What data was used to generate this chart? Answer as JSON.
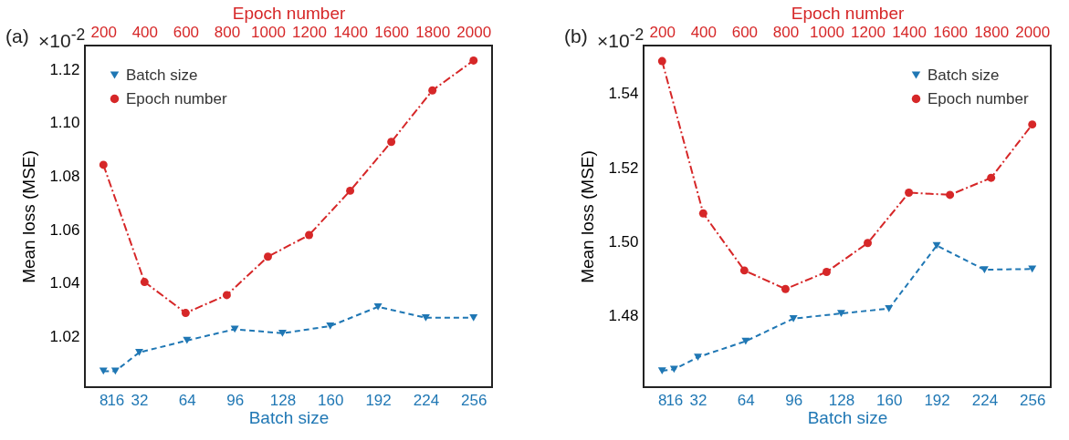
{
  "chart_data": [
    {
      "type": "line",
      "xlabel": "Batch size",
      "x2label": "Epoch number",
      "ylabel": "Mean loss (MSE)",
      "xlim": [
        -4.4,
        268.4
      ],
      "xticks": [
        8,
        16,
        32,
        64,
        96,
        128,
        160,
        192,
        224,
        256
      ],
      "x2lim": [
        110,
        2090
      ],
      "x2ticks": [
        200,
        400,
        600,
        800,
        1000,
        1200,
        1400,
        1600,
        1800,
        2000
      ],
      "ylim": [
        1.001,
        1.129
      ],
      "yticks": [
        1.02,
        1.04,
        1.06,
        1.08,
        {
          "value": 1.1,
          "label": "1.10"
        },
        1.12
      ],
      "legend": "top left",
      "annotations": [
        "(a)",
        "×10$^{-2}$"
      ],
      "series": [
        {
          "name": "Batch size",
          "color": "#1f77b4",
          "marker": "triangle-down",
          "line_style": "dashed",
          "x": [
            8,
            16,
            32,
            64,
            96,
            128,
            160,
            192,
            224,
            256
          ],
          "values": [
            1.007,
            1.007,
            1.014,
            1.0185,
            1.0227,
            1.0212,
            1.0239,
            1.0311,
            1.027,
            1.027
          ]
        },
        {
          "name": "Epoch number",
          "color": "#d62728",
          "marker": "circle",
          "line_style": "dashdot",
          "axis": "x2",
          "x": [
            200,
            400,
            600,
            800,
            1000,
            1200,
            1400,
            1600,
            1800,
            2000
          ],
          "values": [
            1.0843,
            1.0404,
            1.0288,
            1.0355,
            1.0499,
            1.058,
            1.0746,
            1.0929,
            1.1122,
            1.1234
          ]
        }
      ]
    },
    {
      "type": "line",
      "xlabel": "Batch size",
      "x2label": "Epoch number",
      "ylabel": "Mean loss (MSE)",
      "xlim": [
        -4.4,
        268.4
      ],
      "xticks": [
        8,
        16,
        32,
        64,
        96,
        128,
        160,
        192,
        224,
        256
      ],
      "x2lim": [
        110,
        2090
      ],
      "x2ticks": [
        200,
        400,
        600,
        800,
        1000,
        1200,
        1400,
        1600,
        1800,
        2000
      ],
      "ylim": [
        1.4608,
        1.553
      ],
      "yticks": [
        1.48,
        {
          "value": 1.5,
          "label": "1.50"
        },
        1.52,
        1.54
      ],
      "legend": "top right",
      "annotations": [
        "(b)",
        "×10$^{-2}$"
      ],
      "series": [
        {
          "name": "Batch size",
          "color": "#1f77b4",
          "marker": "triangle-down",
          "line_style": "dashed",
          "x": [
            8,
            16,
            32,
            64,
            96,
            128,
            160,
            192,
            224,
            256
          ],
          "values": [
            1.4652,
            1.4656,
            1.4689,
            1.4732,
            1.4793,
            1.4807,
            1.482,
            1.499,
            1.4925,
            1.4927
          ]
        },
        {
          "name": "Epoch number",
          "color": "#d62728",
          "marker": "circle",
          "line_style": "dashdot",
          "axis": "x2",
          "x": [
            200,
            400,
            600,
            800,
            1000,
            1200,
            1400,
            1600,
            1800,
            2000
          ],
          "values": [
            1.5488,
            1.5077,
            1.4923,
            1.4873,
            1.4919,
            1.4997,
            1.5133,
            1.5127,
            1.5173,
            1.5317
          ]
        }
      ]
    }
  ]
}
